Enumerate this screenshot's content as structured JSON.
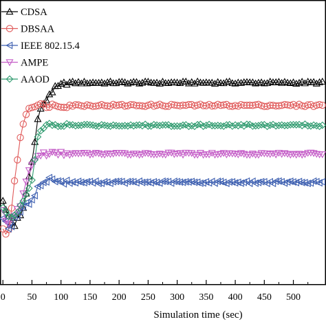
{
  "chart_data": {
    "type": "line",
    "title": "",
    "xlabel": "Simulation time (sec)",
    "ylabel": "",
    "xlim": [
      -5,
      555
    ],
    "ylim": [
      0,
      100
    ],
    "xticks": [
      0,
      50,
      100,
      150,
      200,
      250,
      300,
      350,
      400,
      450,
      500
    ],
    "xtick_labels": [
      "0",
      "50",
      "100",
      "150",
      "200",
      "250",
      "300",
      "350",
      "400",
      "450",
      "500"
    ],
    "grid": false,
    "legend_position": "top-left",
    "series": [
      {
        "name": "CDSA",
        "color": "#000000",
        "marker": "triangle-up",
        "points": [
          [
            0,
            30
          ],
          [
            5,
            26
          ],
          [
            10,
            24
          ],
          [
            15,
            22
          ],
          [
            20,
            21
          ],
          [
            25,
            23
          ],
          [
            30,
            24
          ],
          [
            35,
            27
          ],
          [
            40,
            32
          ],
          [
            45,
            38
          ],
          [
            50,
            44
          ],
          [
            55,
            50
          ],
          [
            60,
            58
          ],
          [
            65,
            62
          ],
          [
            70,
            63
          ],
          [
            75,
            65
          ],
          [
            80,
            67
          ],
          [
            85,
            68
          ],
          [
            90,
            69
          ],
          [
            100,
            70
          ],
          [
            110,
            71
          ],
          [
            120,
            71
          ],
          [
            130,
            71
          ],
          [
            150,
            71
          ],
          [
            200,
            71
          ],
          [
            250,
            71
          ],
          [
            300,
            71
          ],
          [
            350,
            71
          ],
          [
            400,
            71
          ],
          [
            450,
            71
          ],
          [
            500,
            71
          ],
          [
            550,
            71
          ]
        ]
      },
      {
        "name": "DBSAA",
        "color": "#e05a5a",
        "marker": "circle",
        "points": [
          [
            0,
            20
          ],
          [
            5,
            17
          ],
          [
            10,
            20
          ],
          [
            15,
            27
          ],
          [
            20,
            36
          ],
          [
            25,
            44
          ],
          [
            30,
            52
          ],
          [
            35,
            57
          ],
          [
            40,
            60
          ],
          [
            45,
            62
          ],
          [
            50,
            63
          ],
          [
            55,
            63
          ],
          [
            60,
            63
          ],
          [
            70,
            63
          ],
          [
            80,
            63
          ],
          [
            90,
            63
          ],
          [
            100,
            63
          ],
          [
            150,
            63
          ],
          [
            200,
            63
          ],
          [
            250,
            63
          ],
          [
            300,
            63
          ],
          [
            350,
            63
          ],
          [
            400,
            63
          ],
          [
            450,
            63
          ],
          [
            500,
            63
          ],
          [
            550,
            63
          ]
        ]
      },
      {
        "name": "IEEE 802.15.4",
        "color": "#3d5fb0",
        "marker": "triangle-left",
        "points": [
          [
            0,
            24
          ],
          [
            5,
            22
          ],
          [
            10,
            20
          ],
          [
            15,
            21
          ],
          [
            20,
            23
          ],
          [
            25,
            24
          ],
          [
            30,
            26
          ],
          [
            35,
            27
          ],
          [
            40,
            28
          ],
          [
            45,
            29
          ],
          [
            50,
            30
          ],
          [
            60,
            34
          ],
          [
            70,
            36
          ],
          [
            80,
            37
          ],
          [
            90,
            37
          ],
          [
            100,
            36
          ],
          [
            150,
            36
          ],
          [
            200,
            36
          ],
          [
            250,
            36
          ],
          [
            300,
            36
          ],
          [
            350,
            36
          ],
          [
            400,
            36
          ],
          [
            450,
            36
          ],
          [
            500,
            36
          ],
          [
            550,
            36
          ]
        ]
      },
      {
        "name": "AMPE",
        "color": "#c45cc7",
        "marker": "triangle-down",
        "points": [
          [
            0,
            26
          ],
          [
            5,
            23
          ],
          [
            10,
            22
          ],
          [
            15,
            23
          ],
          [
            20,
            24
          ],
          [
            25,
            26
          ],
          [
            30,
            28
          ],
          [
            35,
            32
          ],
          [
            40,
            36
          ],
          [
            45,
            40
          ],
          [
            50,
            42
          ],
          [
            55,
            44
          ],
          [
            60,
            45
          ],
          [
            70,
            46
          ],
          [
            80,
            46
          ],
          [
            90,
            46
          ],
          [
            100,
            46
          ],
          [
            150,
            46
          ],
          [
            200,
            46
          ],
          [
            250,
            46
          ],
          [
            300,
            46
          ],
          [
            350,
            46
          ],
          [
            400,
            46
          ],
          [
            450,
            46
          ],
          [
            500,
            46
          ],
          [
            550,
            46
          ]
        ]
      },
      {
        "name": "AAOD",
        "color": "#2e9a6e",
        "marker": "diamond",
        "points": [
          [
            0,
            27
          ],
          [
            5,
            25
          ],
          [
            10,
            24
          ],
          [
            15,
            24
          ],
          [
            20,
            25
          ],
          [
            25,
            26
          ],
          [
            30,
            28
          ],
          [
            35,
            30
          ],
          [
            40,
            32
          ],
          [
            45,
            34
          ],
          [
            50,
            36
          ],
          [
            55,
            44
          ],
          [
            60,
            52
          ],
          [
            65,
            54
          ],
          [
            70,
            55
          ],
          [
            80,
            56
          ],
          [
            90,
            56
          ],
          [
            100,
            56
          ],
          [
            150,
            56
          ],
          [
            200,
            56
          ],
          [
            250,
            56
          ],
          [
            300,
            56
          ],
          [
            350,
            56
          ],
          [
            400,
            56
          ],
          [
            450,
            56
          ],
          [
            500,
            56
          ],
          [
            550,
            56
          ]
        ]
      }
    ]
  }
}
